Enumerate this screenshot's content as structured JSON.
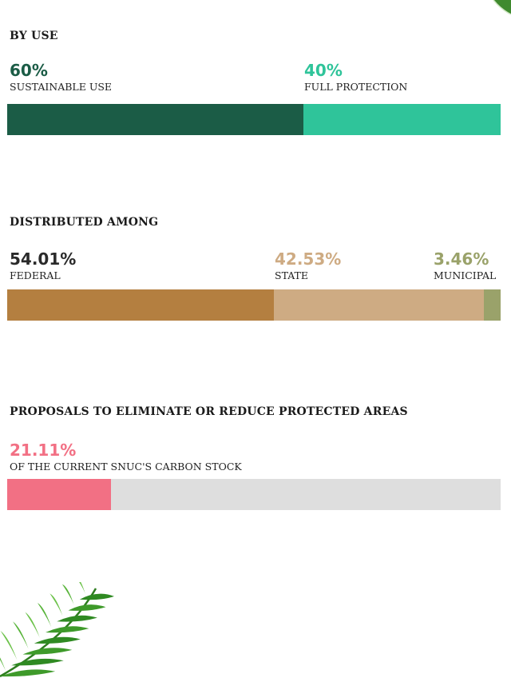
{
  "colors": {
    "sustainable": "#1b5c46",
    "full_protection": "#2fc49a",
    "federal": "#b47f40",
    "state": "#ceab83",
    "municipal": "#9aa26a",
    "proposals": "#f27084",
    "track": "#dedede"
  },
  "icons": {
    "leaf_top": "palm-leaf-icon",
    "leaf_bottom": "palm-leaf-icon"
  },
  "chart_data": [
    {
      "type": "bar",
      "title": "BY USE",
      "stacked": true,
      "categories": [
        "SUSTAINABLE USE",
        "FULL PROTECTION"
      ],
      "values": [
        60,
        40
      ],
      "labels": [
        "60%",
        "40%"
      ]
    },
    {
      "type": "bar",
      "title": "DISTRIBUTED AMONG",
      "stacked": true,
      "categories": [
        "FEDERAL",
        "STATE",
        "MUNICIPAL"
      ],
      "values": [
        54.01,
        42.53,
        3.46
      ],
      "labels": [
        "54.01%",
        "42.53%",
        "3.46%"
      ]
    },
    {
      "type": "bar",
      "title": "PROPOSALS TO ELIMINATE OR REDUCE PROTECTED AREAS",
      "categories": [
        "OF THE CURRENT SNUC'S CARBON STOCK"
      ],
      "values": [
        21.11
      ],
      "labels": [
        "21.11%"
      ],
      "ylim": [
        0,
        100
      ]
    }
  ]
}
